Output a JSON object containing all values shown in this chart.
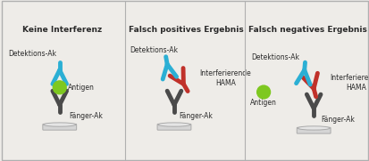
{
  "bg_color": "#eeece8",
  "border_color": "#b0b0b0",
  "panel_titles": [
    "Keine Interferenz",
    "Falsch positives Ergebnis",
    "Falsch negatives Ergebnis"
  ],
  "title_fontsize": 6.5,
  "label_fontsize": 5.5,
  "dark_color": "#2a2a2a",
  "cyan_color": "#2bafd4",
  "red_color": "#c0312a",
  "green_color": "#7ec820",
  "stem_color": "#4a4a4a",
  "plate_color": "#dcdcdc",
  "plate_edge_color": "#aaaaaa"
}
